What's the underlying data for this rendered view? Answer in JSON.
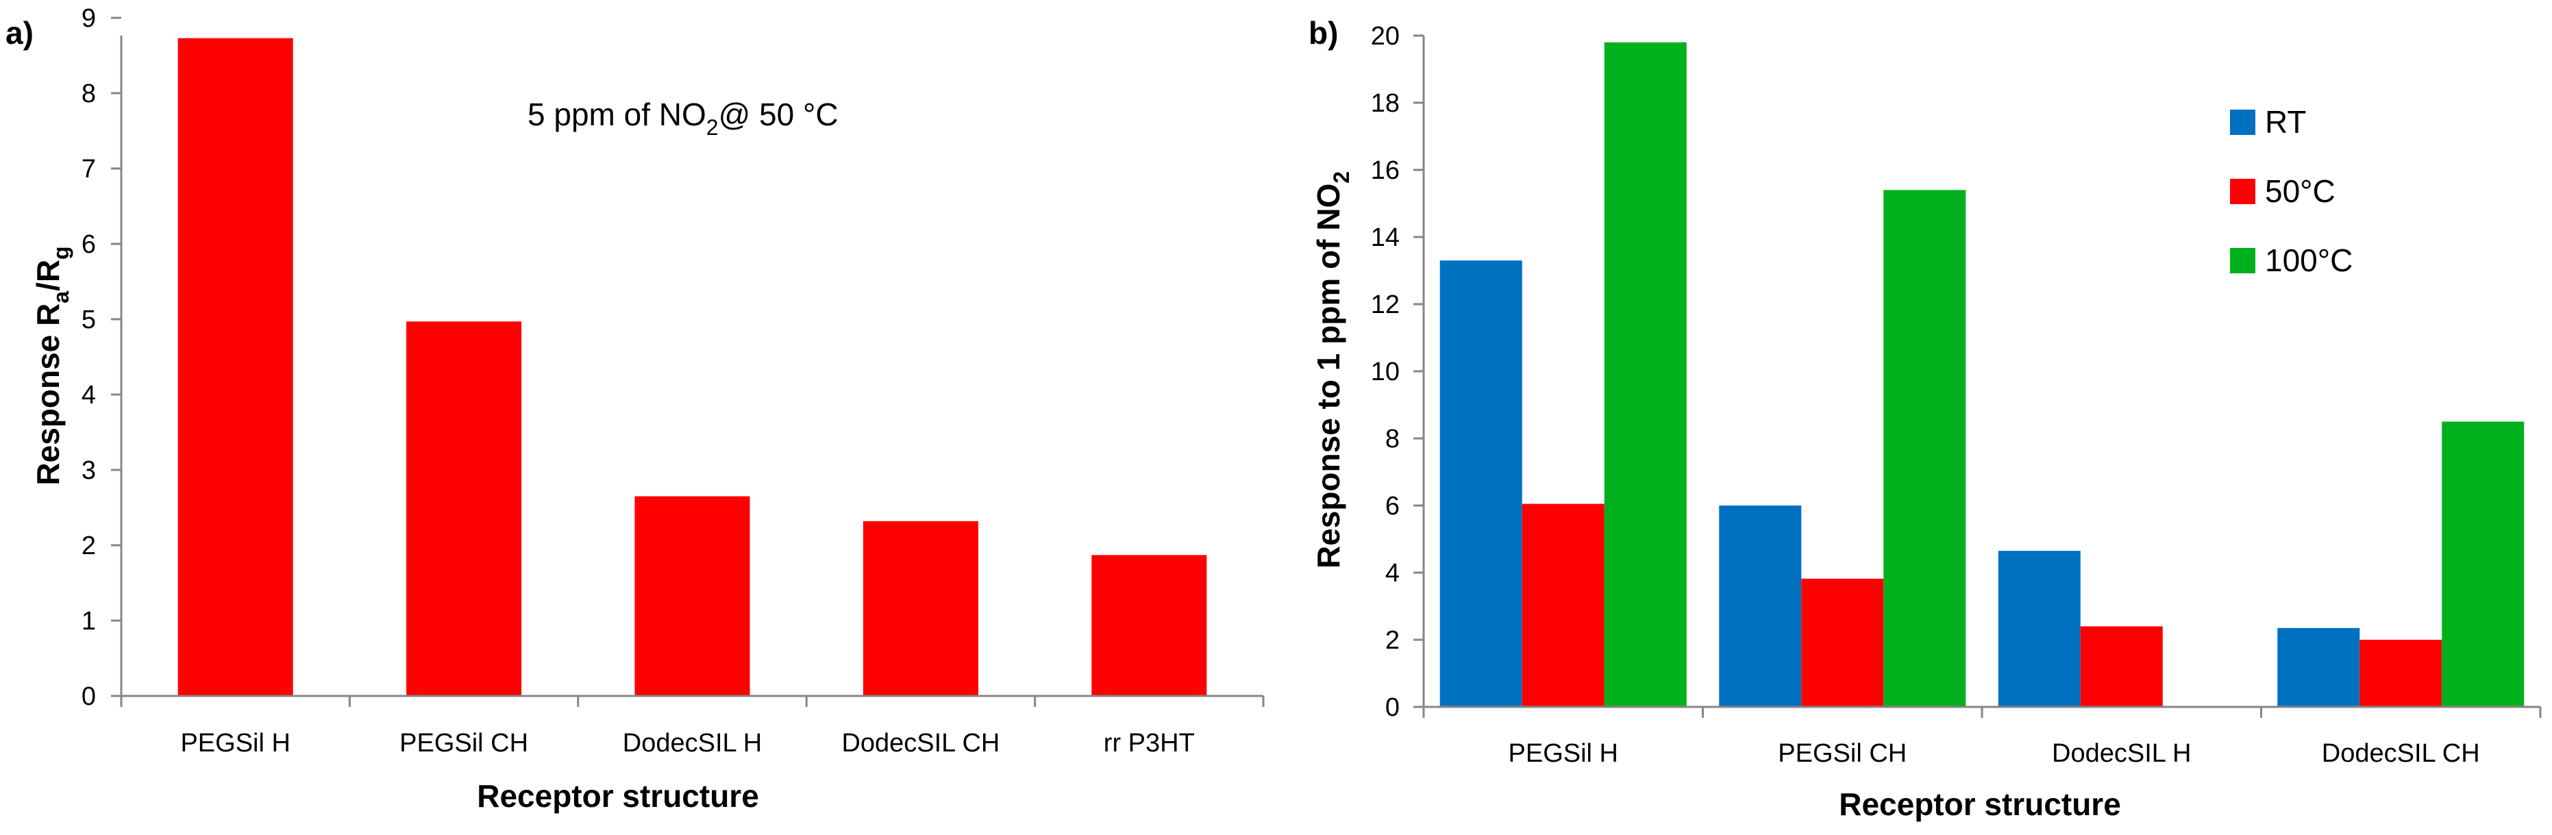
{
  "chart_data": [
    {
      "type": "bar",
      "panel_label": "a)",
      "annotation": {
        "prefix": "5 ppm of NO",
        "sub": "2",
        "suffix": "@ 50 °C"
      },
      "categories": [
        "PEGSil H",
        "PEGSil CH",
        "DodecSIL H",
        "DodecSIL CH",
        "rr P3HT"
      ],
      "series": [
        {
          "name": "50 °C",
          "color": "#ff0000",
          "values": [
            8.73,
            4.97,
            2.65,
            2.32,
            1.87
          ]
        }
      ],
      "xlabel": "Receptor structure",
      "ylabel": {
        "prefix": "Response R",
        "sub1": "a",
        "mid": "/R",
        "sub2": "g"
      },
      "ylim": [
        0,
        9
      ],
      "yticks": [
        "0",
        "1",
        "2",
        "3",
        "4",
        "5",
        "6",
        "7",
        "8",
        "9"
      ],
      "grid": false,
      "legend": "none"
    },
    {
      "type": "bar",
      "panel_label": "b)",
      "categories": [
        "PEGSil H",
        "PEGSil CH",
        "DodecSIL H",
        "DodecSIL CH"
      ],
      "series": [
        {
          "name": "RT",
          "color": "#0070c0",
          "values": [
            13.3,
            6.0,
            4.65,
            2.35
          ]
        },
        {
          "name": "50°C",
          "color": "#ff0000",
          "values": [
            6.05,
            3.82,
            2.4,
            2.0
          ]
        },
        {
          "name": "100°C",
          "color": "#00b01c",
          "values": [
            19.8,
            15.4,
            0,
            8.5
          ]
        }
      ],
      "xlabel": "Receptor structure",
      "ylabel": {
        "prefix": "Response to 1 ppm of NO",
        "sub": "2"
      },
      "ylim": [
        0,
        20
      ],
      "yticks": [
        "0",
        "2",
        "4",
        "6",
        "8",
        "10",
        "12",
        "14",
        "16",
        "18",
        "20"
      ],
      "grid": false,
      "legend": "top-right"
    }
  ]
}
